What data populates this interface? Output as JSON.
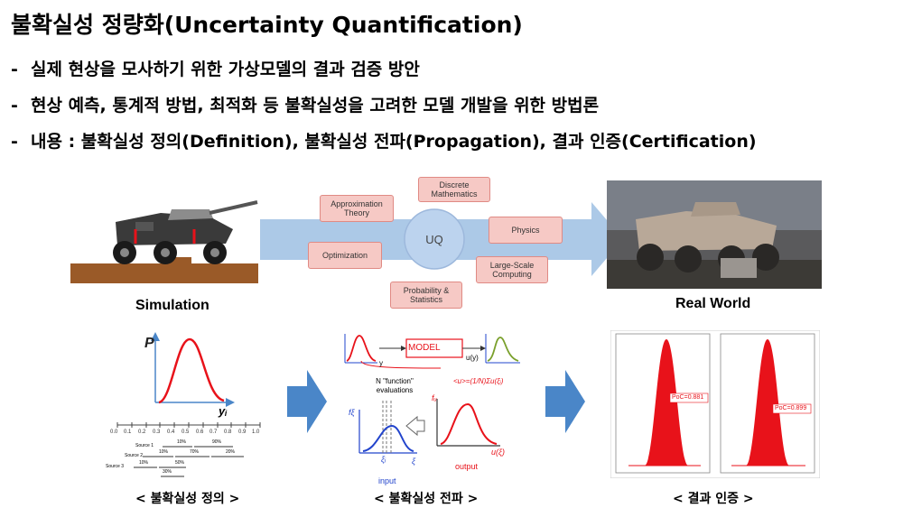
{
  "title": "불확실성 정량화(Uncertainty Quantification)",
  "bullets": [
    "실제 현상을 모사하기 위한 가상모델의 결과 검증 방안",
    "현상 예측, 통계적 방법, 최적화 등 불확실성을 고려한 모델 개발을 위한 방법론",
    "내용 : 불확실성 정의(Definition), 불확실성 전파(Propagation), 결과 인증(Certification)"
  ],
  "bullet_marker": "-",
  "diagram": {
    "simulation_label": "Simulation",
    "real_world_label": "Real World",
    "center_label": "UQ",
    "boxes": {
      "discrete": "Discrete Mathematics",
      "approx": "Approximation Theory",
      "physics": "Physics",
      "optimization": "Optimization",
      "large_scale": "Large-Scale Computing",
      "probability": "Probability & Statistics"
    }
  },
  "panel1": {
    "caption": "< 불확실성 정의 >",
    "y_axis": "P",
    "x_axis": "yᵢ",
    "scale_ticks": [
      "0.0",
      "0.1",
      "0.2",
      "0.3",
      "0.4",
      "0.5",
      "0.6",
      "0.7",
      "0.8",
      "0.9",
      "1.0"
    ],
    "sources": [
      "Source 1",
      "Source 2",
      "Source 3"
    ],
    "percent_labels": [
      "10%",
      "90%",
      "10%",
      "70%",
      "20%",
      "10%",
      "50%",
      "30%"
    ]
  },
  "panel2": {
    "caption": "< 불확실성 전파 >",
    "model_label": "MODEL",
    "y_label": "y",
    "uy_label": "u(y)",
    "n_function": "N \"function\" evaluations",
    "formula": "<u>=(1/N)Σu(ξᵢ)",
    "f_xi": "fξ",
    "f_u": "fᵤ",
    "xi": "ξ",
    "xi_i": "ξᵢ",
    "u_xi": "u(ξ)",
    "input": "input",
    "output": "output"
  },
  "panel3": {
    "caption": "< 결과 인증 >",
    "poc_left": "PoC=0.881",
    "poc_right": "PoC=0.899"
  },
  "colors": {
    "arrow_blue": "#4a86c8",
    "band_blue": "#9dbfe3",
    "box_fill": "#f6c9c5",
    "red": "#e8121a",
    "curve_blue": "#2244cc"
  }
}
